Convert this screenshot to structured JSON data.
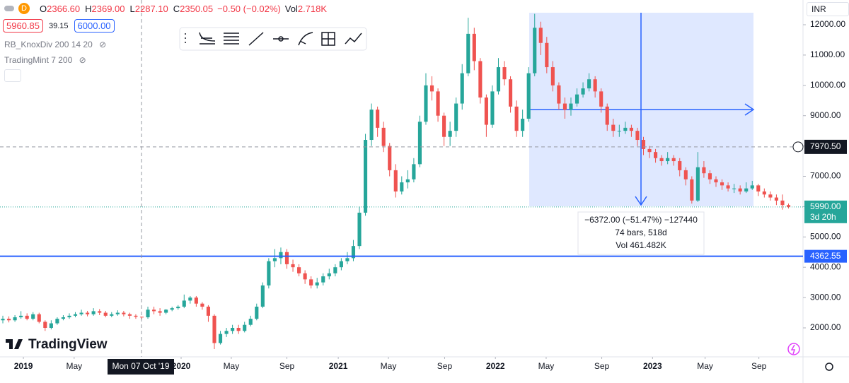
{
  "header": {
    "symbol_icon": "D",
    "ohlc": [
      {
        "label": "O",
        "value": "2366.60"
      },
      {
        "label": "H",
        "value": "2369.00"
      },
      {
        "label": "L",
        "value": "2287.10"
      },
      {
        "label": "C",
        "value": "2350.05"
      }
    ],
    "change": "−0.50 (−0.02%)",
    "volume_label": "Vol",
    "volume": "2.718K"
  },
  "trade": {
    "sell": "5960.85",
    "spread": "39.15",
    "buy": "6000.00"
  },
  "indicators": [
    "RB_KnoxDiv 200 14 20",
    "TradingMint 7 200"
  ],
  "currency": "INR",
  "logo": "TradingView",
  "crosshair": {
    "date": "Mon 07 Oct '19",
    "price": {
      "value": 7970.5,
      "label": "7970.50"
    }
  },
  "measure": {
    "change": "−6372.00 (−51.47%) −127440",
    "bars": "74 bars, 518d",
    "volume": "Vol 461.482K"
  },
  "chart_data": {
    "type": "candlestick",
    "up_color": "#26a69a",
    "down_color": "#ef5350",
    "open": [
      2250,
      2300,
      2250,
      2350,
      2400,
      2300,
      2450,
      2200,
      2000,
      2150,
      2300,
      2350,
      2400,
      2450,
      2500,
      2450,
      2550,
      2500,
      2400,
      2450,
      2500,
      2450,
      2400,
      2366.6,
      2350.05,
      2600,
      2550,
      2500,
      2600,
      2650,
      2700,
      2900,
      3000,
      2800,
      2700,
      2400,
      1500,
      1800,
      1900,
      2000,
      1900,
      2100,
      2300,
      2700,
      3400,
      4200,
      4300,
      4500,
      4100,
      4000,
      3800,
      3600,
      3400,
      3500,
      3700,
      3800,
      4000,
      4200,
      4300,
      4700,
      5800,
      8200,
      9200,
      8600,
      8000,
      7200,
      6500,
      6800,
      6900,
      7400,
      8800,
      10000,
      9800,
      9000,
      8300,
      8500,
      9400,
      10400,
      11700,
      10800,
      9600,
      8700,
      9800,
      10600,
      10200,
      9300,
      8500,
      8900,
      10400,
      11900,
      11400,
      10600,
      10000,
      9400,
      9200,
      9400,
      9700,
      9900,
      10200,
      9800,
      9300,
      8700,
      8500,
      8500,
      8600,
      8500,
      8200,
      7900,
      7800,
      7600,
      7500,
      7600,
      7500,
      7200,
      6900,
      6200,
      7300,
      7100,
      6900,
      6800,
      6700,
      6600,
      6600,
      6500,
      6600,
      6700,
      6500,
      6400,
      6300,
      6200,
      6050
    ],
    "high": [
      2400,
      2380,
      2420,
      2550,
      2480,
      2520,
      2500,
      2250,
      2250,
      2350,
      2420,
      2480,
      2520,
      2600,
      2560,
      2650,
      2620,
      2560,
      2520,
      2580,
      2560,
      2500,
      2450,
      2369,
      2700,
      2700,
      2650,
      2620,
      2700,
      2750,
      3100,
      3050,
      3050,
      2850,
      2750,
      2450,
      1900,
      2000,
      2100,
      2100,
      2200,
      2400,
      2800,
      3500,
      4300,
      4600,
      4650,
      4600,
      4250,
      4100,
      3900,
      3700,
      3650,
      3800,
      3950,
      4100,
      4300,
      4500,
      4900,
      6000,
      8400,
      9400,
      9300,
      8800,
      8100,
      7400,
      7000,
      7200,
      7600,
      9000,
      10400,
      10300,
      9900,
      9100,
      8800,
      9600,
      10700,
      12230,
      11900,
      10900,
      9700,
      10000,
      10900,
      10800,
      10300,
      9500,
      9200,
      10600,
      12360,
      12100,
      11600,
      10800,
      10100,
      9600,
      9600,
      9900,
      10100,
      10400,
      10300,
      9900,
      9400,
      8900,
      8700,
      8800,
      8700,
      8600,
      8300,
      8000,
      7900,
      7700,
      7800,
      7700,
      7600,
      7300,
      7000,
      7800,
      7500,
      7200,
      7000,
      6900,
      6800,
      6750,
      6700,
      6800,
      6850,
      6750,
      6600,
      6500,
      6400,
      6400,
      6100
    ],
    "low": [
      2150,
      2180,
      2200,
      2300,
      2250,
      2250,
      2150,
      1900,
      1950,
      2100,
      2250,
      2300,
      2350,
      2400,
      2380,
      2400,
      2420,
      2350,
      2350,
      2400,
      2380,
      2300,
      2300,
      2287.1,
      2300,
      2450,
      2400,
      2450,
      2550,
      2600,
      2650,
      2800,
      2700,
      2600,
      2200,
      1300,
      1450,
      1700,
      1800,
      1800,
      1850,
      2050,
      2250,
      2650,
      3300,
      4000,
      4100,
      3950,
      3850,
      3700,
      3450,
      3300,
      3300,
      3400,
      3600,
      3700,
      3900,
      4100,
      4200,
      4600,
      5700,
      8000,
      8300,
      7800,
      7000,
      6300,
      6400,
      6600,
      6800,
      7300,
      8700,
      9500,
      8800,
      8000,
      8000,
      8300,
      9200,
      10300,
      10500,
      9400,
      8300,
      8600,
      9700,
      10000,
      9100,
      8300,
      8300,
      8800,
      10300,
      11000,
      10400,
      9800,
      9200,
      8900,
      9000,
      9300,
      9600,
      9800,
      9600,
      9100,
      8500,
      8300,
      8300,
      8400,
      8300,
      8000,
      7700,
      7600,
      7450,
      7350,
      7400,
      7350,
      7000,
      6700,
      6100,
      6150,
      6950,
      6750,
      6650,
      6550,
      6500,
      6450,
      6400,
      6450,
      6550,
      6350,
      6300,
      6200,
      6050,
      5900,
      5940
    ],
    "close": [
      2300,
      2250,
      2350,
      2400,
      2300,
      2450,
      2200,
      2000,
      2150,
      2300,
      2350,
      2400,
      2450,
      2500,
      2450,
      2550,
      2500,
      2400,
      2450,
      2500,
      2450,
      2400,
      2366.6,
      2350.05,
      2600,
      2550,
      2500,
      2600,
      2650,
      2700,
      2900,
      3000,
      2800,
      2700,
      2400,
      1500,
      1800,
      1900,
      2000,
      1900,
      2100,
      2300,
      2700,
      3400,
      4200,
      4300,
      4500,
      4100,
      4000,
      3800,
      3600,
      3400,
      3500,
      3700,
      3800,
      4000,
      4200,
      4300,
      4700,
      5800,
      8200,
      9200,
      8600,
      8000,
      7200,
      6500,
      6800,
      6900,
      7400,
      8800,
      10000,
      9800,
      9000,
      8300,
      8500,
      9400,
      10400,
      11700,
      10800,
      9600,
      8700,
      9800,
      10600,
      10200,
      9300,
      8500,
      8900,
      10400,
      11900,
      11400,
      10600,
      10000,
      9400,
      9200,
      9400,
      9700,
      9900,
      10200,
      9800,
      9300,
      8700,
      8500,
      8500,
      8600,
      8500,
      8200,
      7900,
      7800,
      7600,
      7500,
      7600,
      7500,
      7200,
      6900,
      6200,
      7300,
      7100,
      6900,
      6800,
      6700,
      6600,
      6600,
      6500,
      6600,
      6700,
      6500,
      6400,
      6300,
      6200,
      6050,
      5990
    ],
    "xlim": [
      -0.47,
      132.4
    ],
    "xticks": [
      {
        "value": 3.4,
        "label": "2019"
      },
      {
        "value": 11.8,
        "label": "May"
      },
      {
        "value": 29.5,
        "label": "2020"
      },
      {
        "value": 37.8,
        "label": "May"
      },
      {
        "value": 47,
        "label": "Sep"
      },
      {
        "value": 55.5,
        "label": "2021"
      },
      {
        "value": 63.8,
        "label": "May"
      },
      {
        "value": 73.1,
        "label": "Sep"
      },
      {
        "value": 81.5,
        "label": "2022"
      },
      {
        "value": 89.9,
        "label": "May"
      },
      {
        "value": 99.1,
        "label": "Sep"
      },
      {
        "value": 107.5,
        "label": "2023"
      },
      {
        "value": 116.2,
        "label": "May"
      },
      {
        "value": 125.1,
        "label": "Sep"
      }
    ],
    "ylim": [
      1044,
      12816
    ],
    "yticks": [
      {
        "value": 2000,
        "label": "2000.00"
      },
      {
        "value": 3000,
        "label": "3000.00"
      },
      {
        "value": 4000,
        "label": "4000.00"
      },
      {
        "value": 5000,
        "label": "5000.00"
      },
      {
        "value": 6000,
        "label": "6000.00"
      },
      {
        "value": 7000,
        "label": "7000.00"
      },
      {
        "value": 8000,
        "label": "8000.00"
      },
      {
        "value": 9000,
        "label": "9000.00"
      },
      {
        "value": 10000,
        "label": "10000.00"
      },
      {
        "value": 11000,
        "label": "11000.00"
      },
      {
        "value": 12000,
        "label": "12000.00"
      }
    ],
    "grid": false,
    "hline": {
      "value": 4362.55,
      "color": "#2962ff"
    },
    "last_price": {
      "value": 5990,
      "label": "5990.00",
      "countdown": "3d 20h",
      "color": "#26a69a"
    }
  }
}
